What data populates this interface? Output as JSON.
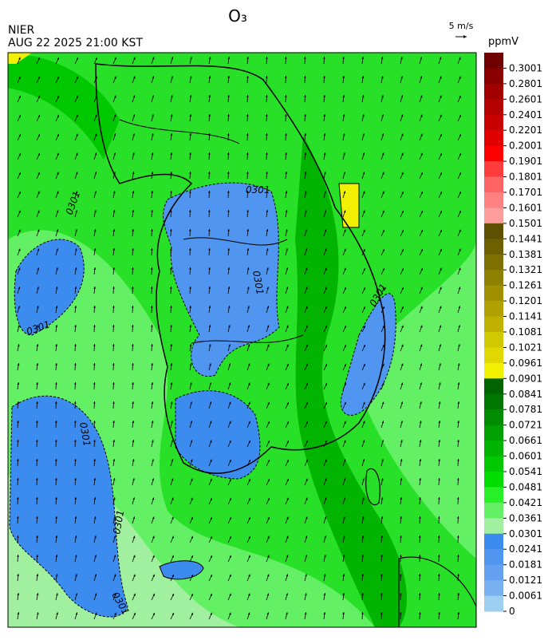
{
  "header": {
    "title": "O₃",
    "agency": "NIER",
    "timestamp": "AUG 22 2025 21:00 KST",
    "wind_scale": "5 m/s"
  },
  "colorbar": {
    "unit": "ppmV",
    "levels": [
      0.3001,
      0.2801,
      0.2601,
      0.2401,
      0.2201,
      0.2001,
      0.1901,
      0.1801,
      0.1701,
      0.1601,
      0.1501,
      0.1441,
      0.1381,
      0.1321,
      0.1261,
      0.1201,
      0.1141,
      0.1081,
      0.1021,
      0.0961,
      0.0901,
      0.0841,
      0.0781,
      0.0721,
      0.0661,
      0.0601,
      0.0541,
      0.0481,
      0.0421,
      0.0361,
      0.0301,
      0.0241,
      0.0181,
      0.0121,
      0.0061,
      0
    ],
    "colors": [
      "#6e0000",
      "#8a0000",
      "#a00000",
      "#b40000",
      "#c80000",
      "#e00000",
      "#ff0000",
      "#ff3c3c",
      "#ff6464",
      "#ff8080",
      "#ff9c9c",
      "#5e5000",
      "#6e6000",
      "#7e7000",
      "#8e8000",
      "#a09000",
      "#b0a000",
      "#c0b000",
      "#d0c800",
      "#e0d800",
      "#f0f000",
      "#006400",
      "#007800",
      "#008c00",
      "#00a000",
      "#00b400",
      "#00c800",
      "#00dc00",
      "#28f028",
      "#64f064",
      "#a0f0a0",
      "#3c8cf0",
      "#5096f0",
      "#64a0f0",
      "#78b0f0",
      "#9ccff0"
    ]
  },
  "map": {
    "contour_labels": [
      "0301",
      "0301",
      "0301",
      "0301",
      "0301",
      "0301",
      "0301",
      "0301"
    ]
  }
}
